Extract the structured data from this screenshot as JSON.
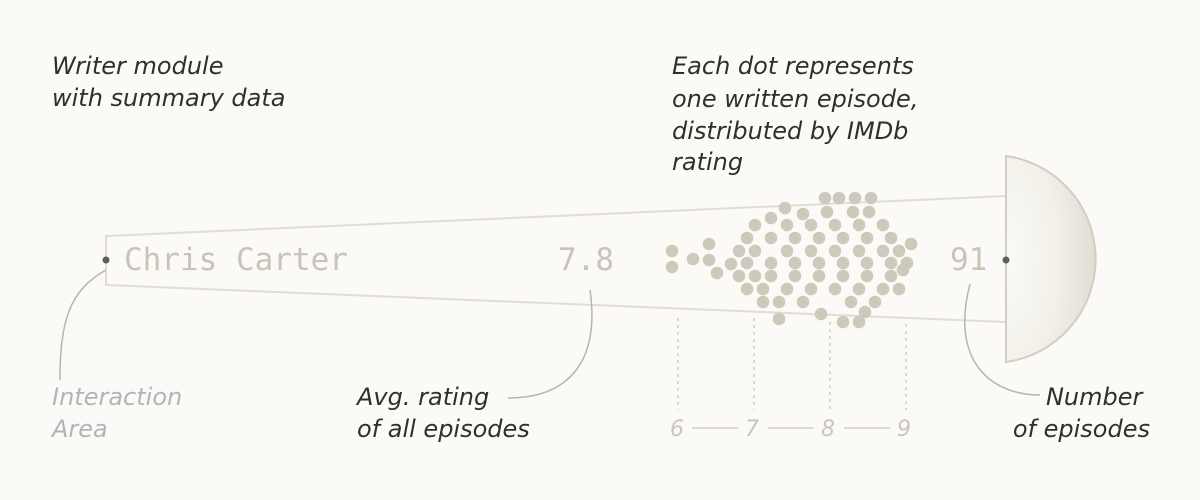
{
  "annotations": {
    "module_line1": "Writer module",
    "module_line2": "with summary data",
    "dot_line1": "Each dot represents",
    "dot_line2": "one written episode,",
    "dot_line3": "distributed by IMDb",
    "dot_line4": "rating",
    "interaction_line1": "Interaction",
    "interaction_line2": "Area",
    "avg_line1": "Avg. rating",
    "avg_line2": "of all episodes",
    "count_line1": "Number",
    "count_line2": "of episodes"
  },
  "writer": {
    "name": "Chris Carter",
    "avg_rating": "7.8",
    "episode_count": "91"
  },
  "rating_axis": {
    "ticks": [
      "6",
      "7",
      "8",
      "9"
    ]
  },
  "colors": {
    "background": "#fbfaf6",
    "dots": "#cdc9bb",
    "outline": "#e0ddd5",
    "leader_lines": "#b7b3bb",
    "node": "#5f6157"
  }
}
